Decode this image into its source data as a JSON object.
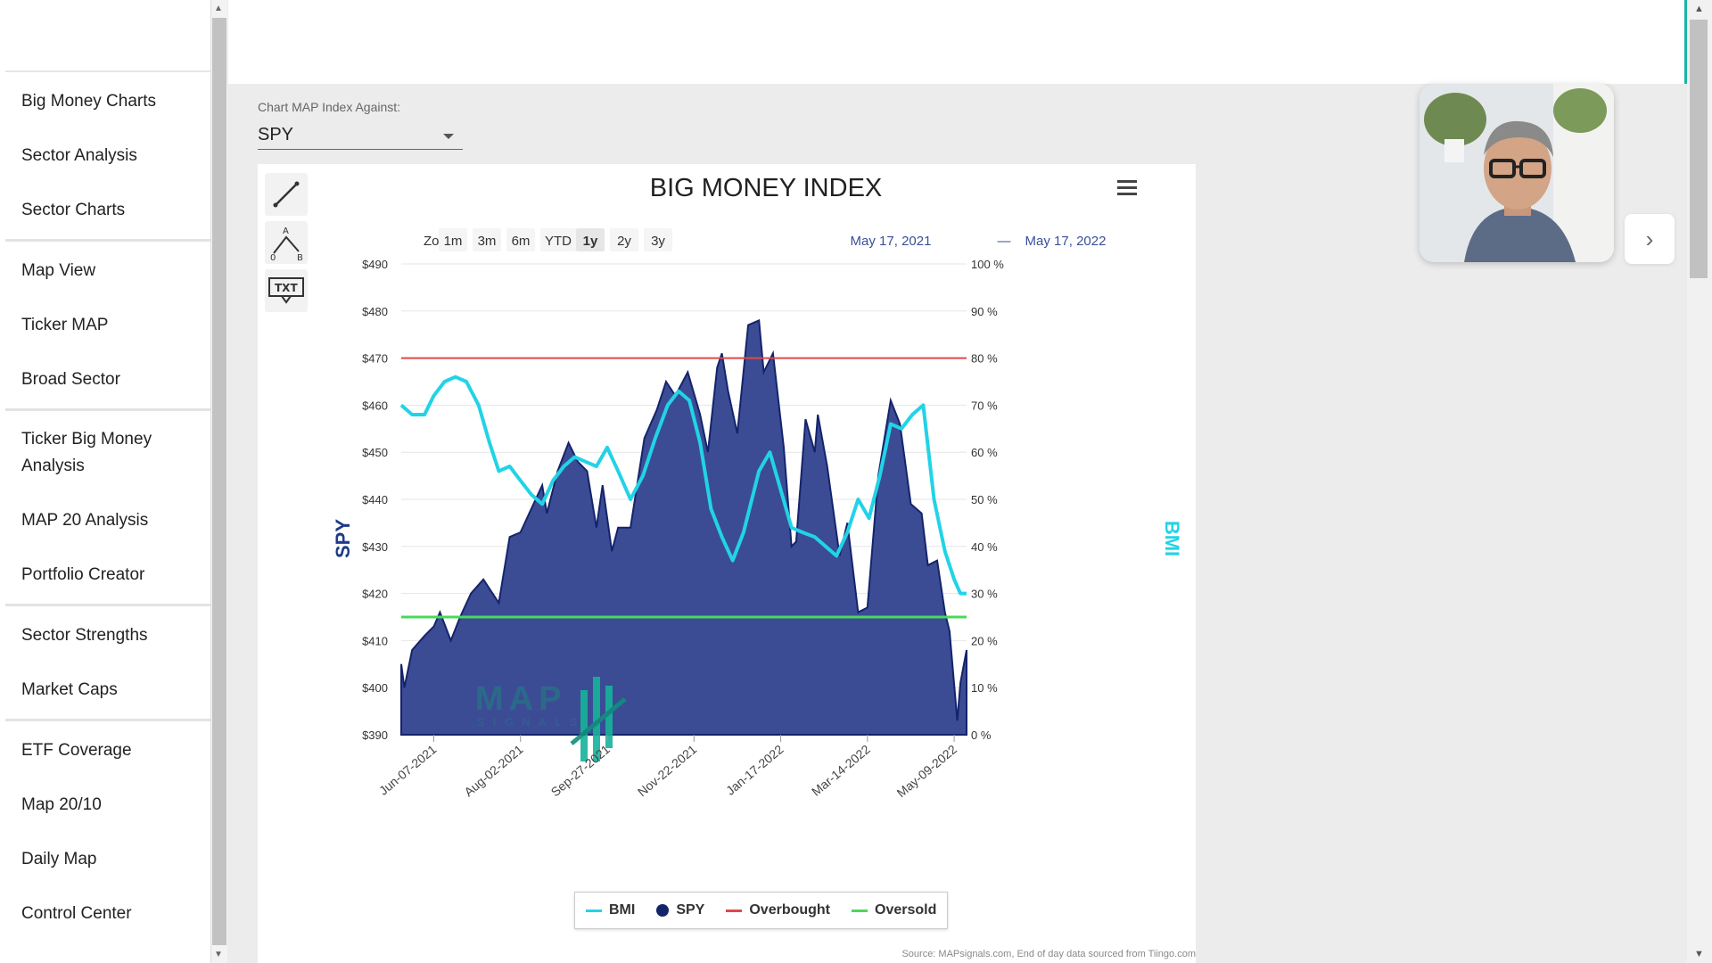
{
  "sidebar": {
    "groups": [
      [
        "Big Money Charts",
        "Sector Analysis",
        "Sector Charts"
      ],
      [
        "Map View",
        "Ticker MAP",
        "Broad Sector"
      ],
      [
        "Ticker Big Money Analysis",
        "MAP 20 Analysis",
        "Portfolio Creator"
      ],
      [
        "Sector Strengths",
        "Market Caps"
      ],
      [
        "ETF Coverage",
        "Map 20/10",
        "Daily Map",
        "Control Center"
      ]
    ]
  },
  "selector": {
    "label": "Chart MAP Index Against:",
    "value": "SPY"
  },
  "toolbar": {
    "zoom_label": "Zoom",
    "ranges": [
      "1m",
      "3m",
      "6m",
      "YTD",
      "1y",
      "2y",
      "3y"
    ],
    "selected_range": "1y",
    "date_from": "May 17, 2021",
    "date_sep": "—",
    "date_to": "May 17, 2022",
    "tools": [
      "line-tool-icon",
      "measure-tool-icon",
      "text-tool-icon"
    ]
  },
  "chart_data": {
    "type": "area",
    "title": "BIG MONEY INDEX",
    "ylabel": "SPY",
    "y2label": "BMI",
    "ylim": [
      390,
      490
    ],
    "y2lim": [
      0,
      100
    ],
    "y_ticks": [
      "$490",
      "$480",
      "$470",
      "$460",
      "$450",
      "$440",
      "$430",
      "$420",
      "$410",
      "$400",
      "$390"
    ],
    "y2_ticks": [
      "100 %",
      "90 %",
      "80 %",
      "70 %",
      "60 %",
      "50 %",
      "40 %",
      "30 %",
      "20 %",
      "10 %",
      "0 %"
    ],
    "x_ticks": [
      "Jun-07-2021",
      "Aug-02-2021",
      "Sep-27-2021",
      "Nov-22-2021",
      "Jan-17-2022",
      "Mar-14-2022",
      "May-09-2022"
    ],
    "x_range": [
      "2021-05-17",
      "2022-05-17"
    ],
    "overbought": 80,
    "oversold": 25,
    "series": [
      {
        "name": "SPY",
        "color": "#14246b",
        "fill": "#3b4c95",
        "values": [
          [
            "2021-05-17",
            405
          ],
          [
            "2021-05-19",
            400
          ],
          [
            "2021-05-24",
            408
          ],
          [
            "2021-06-01",
            411
          ],
          [
            "2021-06-07",
            413
          ],
          [
            "2021-06-11",
            416
          ],
          [
            "2021-06-18",
            410
          ],
          [
            "2021-06-24",
            415
          ],
          [
            "2021-07-01",
            420
          ],
          [
            "2021-07-09",
            423
          ],
          [
            "2021-07-19",
            418
          ],
          [
            "2021-07-26",
            432
          ],
          [
            "2021-08-02",
            433
          ],
          [
            "2021-08-09",
            438
          ],
          [
            "2021-08-16",
            443
          ],
          [
            "2021-08-19",
            437
          ],
          [
            "2021-08-26",
            446
          ],
          [
            "2021-09-02",
            452
          ],
          [
            "2021-09-08",
            448
          ],
          [
            "2021-09-14",
            446
          ],
          [
            "2021-09-20",
            434
          ],
          [
            "2021-09-24",
            443
          ],
          [
            "2021-09-30",
            429
          ],
          [
            "2021-10-04",
            434
          ],
          [
            "2021-10-12",
            434
          ],
          [
            "2021-10-21",
            453
          ],
          [
            "2021-10-29",
            459
          ],
          [
            "2021-11-04",
            465
          ],
          [
            "2021-11-10",
            462
          ],
          [
            "2021-11-18",
            467
          ],
          [
            "2021-11-26",
            458
          ],
          [
            "2021-12-01",
            450
          ],
          [
            "2021-12-07",
            468
          ],
          [
            "2021-12-10",
            471
          ],
          [
            "2021-12-14",
            463
          ],
          [
            "2021-12-20",
            454
          ],
          [
            "2021-12-27",
            477
          ],
          [
            "2022-01-03",
            478
          ],
          [
            "2022-01-06",
            467
          ],
          [
            "2022-01-12",
            471
          ],
          [
            "2022-01-19",
            451
          ],
          [
            "2022-01-24",
            430
          ],
          [
            "2022-01-27",
            431
          ],
          [
            "2022-02-02",
            457
          ],
          [
            "2022-02-08",
            450
          ],
          [
            "2022-02-10",
            458
          ],
          [
            "2022-02-16",
            447
          ],
          [
            "2022-02-24",
            428
          ],
          [
            "2022-03-01",
            435
          ],
          [
            "2022-03-08",
            416
          ],
          [
            "2022-03-14",
            417
          ],
          [
            "2022-03-21",
            445
          ],
          [
            "2022-03-29",
            461
          ],
          [
            "2022-04-04",
            456
          ],
          [
            "2022-04-11",
            439
          ],
          [
            "2022-04-18",
            437
          ],
          [
            "2022-04-22",
            426
          ],
          [
            "2022-04-28",
            427
          ],
          [
            "2022-05-03",
            416
          ],
          [
            "2022-05-06",
            412
          ],
          [
            "2022-05-11",
            393
          ],
          [
            "2022-05-13",
            401
          ],
          [
            "2022-05-17",
            408
          ]
        ]
      },
      {
        "name": "BMI",
        "color": "#22d3e6",
        "values": [
          [
            "2021-05-17",
            70
          ],
          [
            "2021-05-24",
            68
          ],
          [
            "2021-06-01",
            68
          ],
          [
            "2021-06-07",
            72
          ],
          [
            "2021-06-14",
            75
          ],
          [
            "2021-06-21",
            76
          ],
          [
            "2021-06-28",
            75
          ],
          [
            "2021-07-06",
            70
          ],
          [
            "2021-07-13",
            62
          ],
          [
            "2021-07-19",
            56
          ],
          [
            "2021-07-26",
            57
          ],
          [
            "2021-08-02",
            54
          ],
          [
            "2021-08-09",
            51
          ],
          [
            "2021-08-16",
            49
          ],
          [
            "2021-08-23",
            54
          ],
          [
            "2021-08-30",
            57
          ],
          [
            "2021-09-06",
            59
          ],
          [
            "2021-09-13",
            58
          ],
          [
            "2021-09-20",
            57
          ],
          [
            "2021-09-27",
            61
          ],
          [
            "2021-10-04",
            56
          ],
          [
            "2021-10-12",
            50
          ],
          [
            "2021-10-20",
            55
          ],
          [
            "2021-10-28",
            63
          ],
          [
            "2021-11-05",
            70
          ],
          [
            "2021-11-12",
            73
          ],
          [
            "2021-11-19",
            71
          ],
          [
            "2021-11-26",
            62
          ],
          [
            "2021-12-03",
            48
          ],
          [
            "2021-12-10",
            42
          ],
          [
            "2021-12-17",
            37
          ],
          [
            "2021-12-24",
            43
          ],
          [
            "2022-01-03",
            56
          ],
          [
            "2022-01-10",
            60
          ],
          [
            "2022-01-17",
            52
          ],
          [
            "2022-01-24",
            44
          ],
          [
            "2022-01-31",
            43
          ],
          [
            "2022-02-08",
            42
          ],
          [
            "2022-02-15",
            40
          ],
          [
            "2022-02-22",
            38
          ],
          [
            "2022-03-01",
            43
          ],
          [
            "2022-03-08",
            50
          ],
          [
            "2022-03-15",
            46
          ],
          [
            "2022-03-22",
            55
          ],
          [
            "2022-03-29",
            66
          ],
          [
            "2022-04-05",
            65
          ],
          [
            "2022-04-12",
            68
          ],
          [
            "2022-04-19",
            70
          ],
          [
            "2022-04-26",
            50
          ],
          [
            "2022-05-03",
            39
          ],
          [
            "2022-05-09",
            33
          ],
          [
            "2022-05-13",
            30
          ],
          [
            "2022-05-17",
            30
          ]
        ]
      }
    ],
    "legend": [
      "BMI",
      "SPY",
      "Overbought",
      "Oversold"
    ],
    "legend_colors": [
      "#22d3e6",
      "#14246b",
      "#e04848",
      "#4bd85a"
    ],
    "overbought_color": "#e04848",
    "oversold_color": "#4bd85a"
  },
  "watermark": {
    "text": "MAP",
    "subtext": "SIGNALS"
  },
  "source": "Source: MAPsignals.com, End of day data sourced from Tiingo.com"
}
